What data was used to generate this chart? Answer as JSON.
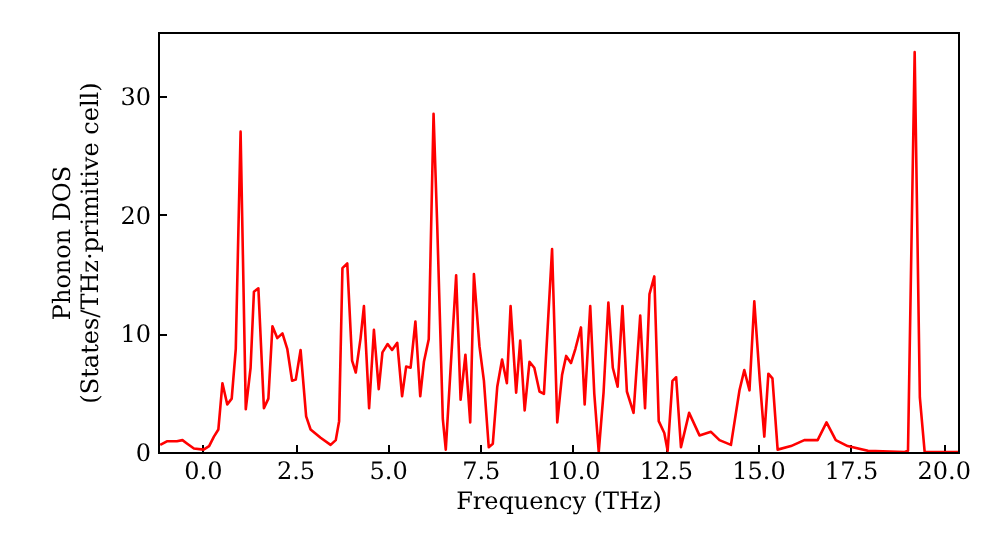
{
  "chart_data": {
    "type": "line",
    "xlabel": "Frequency (THz)",
    "ylabel": "Phonon DOS\n(States/THz·primitive cell)",
    "xlim": [
      -1.2,
      20.4
    ],
    "ylim": [
      0,
      35.4
    ],
    "xticks": [
      {
        "value": 0,
        "label": "0.0"
      },
      {
        "value": 2.5,
        "label": "2.5"
      },
      {
        "value": 5,
        "label": "5.0"
      },
      {
        "value": 7.5,
        "label": "7.5"
      },
      {
        "value": 10,
        "label": "10.0"
      },
      {
        "value": 12.5,
        "label": "12.5"
      },
      {
        "value": 15,
        "label": "15.0"
      },
      {
        "value": 17.5,
        "label": "17.5"
      },
      {
        "value": 20,
        "label": "20.0"
      }
    ],
    "yticks": [
      0,
      10,
      20,
      30
    ],
    "grid": false,
    "marker": "none",
    "line_style": "solid",
    "series": [
      {
        "color": "#ff0000",
        "x": [
          -1.14,
          -0.96,
          -0.69,
          -0.54,
          -0.41,
          -0.23,
          0.03,
          0.18,
          0.31,
          0.43,
          0.54,
          0.67,
          0.79,
          0.9,
          1.03,
          1.17,
          1.3,
          1.39,
          1.51,
          1.66,
          1.78,
          1.89,
          2.02,
          2.16,
          2.29,
          2.42,
          2.52,
          2.65,
          2.8,
          2.92,
          3.19,
          3.46,
          3.6,
          3.69,
          3.78,
          3.91,
          4.04,
          4.14,
          4.27,
          4.36,
          4.5,
          4.63,
          4.76,
          4.86,
          5.0,
          5.12,
          5.26,
          5.39,
          5.5,
          5.62,
          5.75,
          5.88,
          5.98,
          6.11,
          6.24,
          6.34,
          6.49,
          6.57,
          6.85,
          6.97,
          7.1,
          7.23,
          7.33,
          7.48,
          7.6,
          7.73,
          7.84,
          7.96,
          8.09,
          8.22,
          8.32,
          8.47,
          8.58,
          8.7,
          8.83,
          8.96,
          9.1,
          9.22,
          9.44,
          9.58,
          9.71,
          9.82,
          9.95,
          10.07,
          10.22,
          10.32,
          10.47,
          10.58,
          10.7,
          10.83,
          10.96,
          11.08,
          11.21,
          11.34,
          11.46,
          11.64,
          11.82,
          11.95,
          12.07,
          12.2,
          12.32,
          12.47,
          12.56,
          12.69,
          12.79,
          12.92,
          13.14,
          13.42,
          13.73,
          13.96,
          14.27,
          14.5,
          14.63,
          14.77,
          14.9,
          15.05,
          15.17,
          15.28,
          15.39,
          15.53,
          15.89,
          16.25,
          16.61,
          16.85,
          17.1,
          17.42,
          17.97,
          18.96,
          19.05,
          19.23,
          19.37,
          19.5,
          20.4
        ],
        "values": [
          0.6,
          0.9,
          0.9,
          1.0,
          0.7,
          0.3,
          0.2,
          0.5,
          1.3,
          1.9,
          5.8,
          4.0,
          4.5,
          8.7,
          27.0,
          3.6,
          7.1,
          13.5,
          13.8,
          3.7,
          4.5,
          10.6,
          9.6,
          10.0,
          8.7,
          6.0,
          6.1,
          8.6,
          3.0,
          1.9,
          1.2,
          0.6,
          1.0,
          2.6,
          15.5,
          15.9,
          7.7,
          6.7,
          9.6,
          12.3,
          3.7,
          10.3,
          5.3,
          8.4,
          9.1,
          8.6,
          9.2,
          4.7,
          7.2,
          7.1,
          11.0,
          4.7,
          7.6,
          9.5,
          28.5,
          19.0,
          2.8,
          0.2,
          14.9,
          4.4,
          8.2,
          2.5,
          15.0,
          8.9,
          6.0,
          0.4,
          0.7,
          5.5,
          7.8,
          5.8,
          12.3,
          5.0,
          9.4,
          3.5,
          7.6,
          7.1,
          5.1,
          4.9,
          17.1,
          2.5,
          6.5,
          8.1,
          7.5,
          8.7,
          10.5,
          4.0,
          12.3,
          4.9,
          0.0,
          5.0,
          12.6,
          7.1,
          5.5,
          12.3,
          5.1,
          3.3,
          11.5,
          3.7,
          13.3,
          14.8,
          2.6,
          1.6,
          0.1,
          6.0,
          6.3,
          0.4,
          3.3,
          1.4,
          1.7,
          1.0,
          0.6,
          5.2,
          6.9,
          5.2,
          12.7,
          6.0,
          1.3,
          6.6,
          6.2,
          0.2,
          0.5,
          1.0,
          1.0,
          2.5,
          1.0,
          0.5,
          0.1,
          0.0,
          0.1,
          33.7,
          4.6,
          0.0,
          0.0
        ]
      }
    ]
  }
}
